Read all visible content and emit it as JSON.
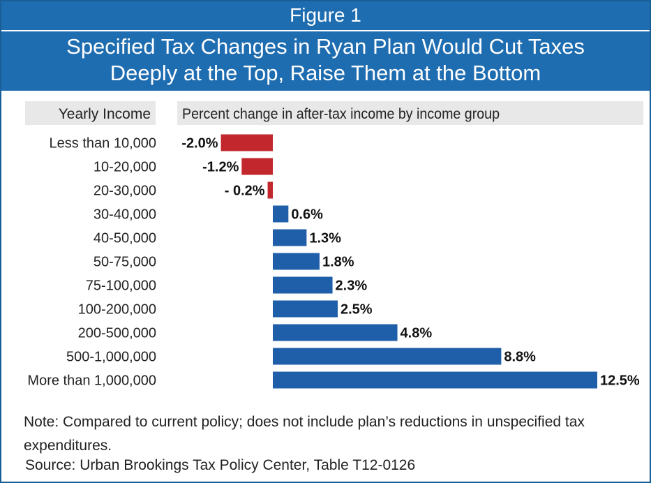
{
  "figure_label": "Figure 1",
  "title_line1": "Specified Tax Changes in Ryan Plan Would Cut Taxes",
  "title_line2": "Deeply at the Top, Raise Them at the Bottom",
  "note": "Note: Compared to current policy; does not include plan’s reductions in unspecified tax expenditures.",
  "source": "Source: Urban Brookings Tax Policy Center, Table T12-0126",
  "colors": {
    "header": "#1f6db1",
    "negative": "#c1272d",
    "positive": "#1f5ea8",
    "header_band": "#e8e8e8"
  },
  "chart_data": {
    "type": "bar",
    "orientation": "horizontal",
    "category_header": "Yearly Income",
    "value_header": "Percent change in after-tax income by income group",
    "categories": [
      "Less than 10,000",
      "10-20,000",
      "20-30,000",
      "30-40,000",
      "40-50,000",
      "50-75,000",
      "75-100,000",
      "100-200,000",
      "200-500,000",
      "500-1,000,000",
      "More than 1,000,000"
    ],
    "values": [
      -2.0,
      -1.2,
      -0.2,
      0.6,
      1.3,
      1.8,
      2.3,
      2.5,
      4.8,
      8.8,
      12.5
    ],
    "data_labels": [
      "-2.0%",
      "-1.2%",
      "- 0.2%",
      "0.6%",
      "1.3%",
      "1.8%",
      "2.3%",
      "2.5%",
      "4.8%",
      "8.8%",
      "12.5%"
    ],
    "xlim": [
      -2.0,
      12.5
    ],
    "grid": false,
    "legend": "none"
  }
}
